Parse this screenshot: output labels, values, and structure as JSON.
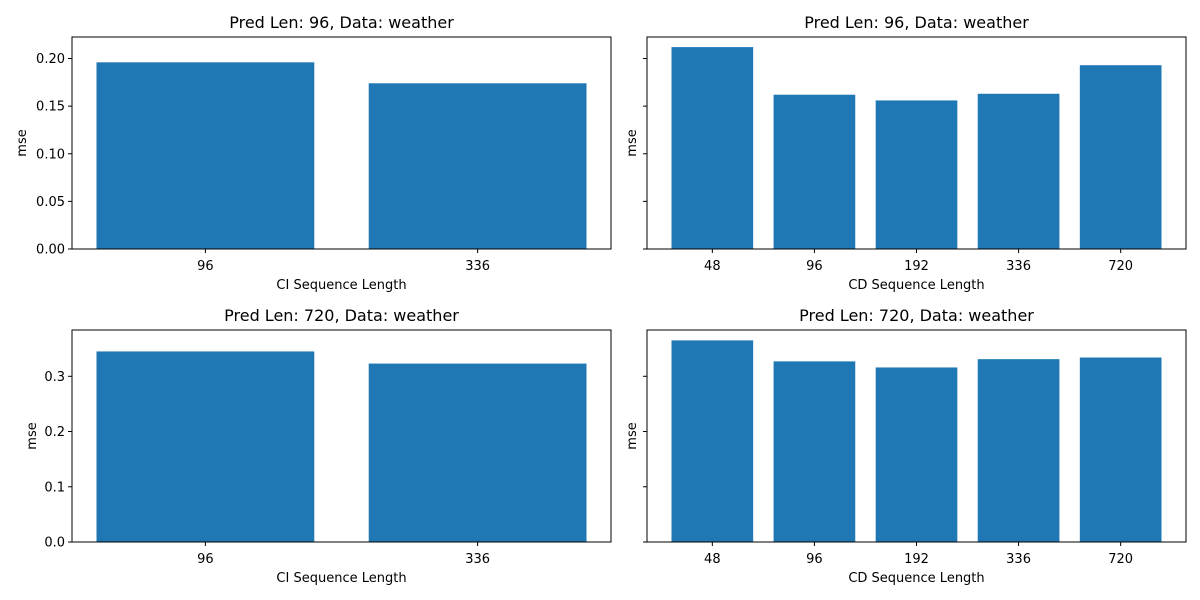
{
  "chart_data": [
    {
      "type": "bar",
      "title": "Pred Len: 96, Data: weather",
      "xlabel": "CI Sequence Length",
      "ylabel": "mse",
      "categories": [
        "96",
        "336"
      ],
      "values": [
        0.196,
        0.174
      ],
      "ylim": [
        0,
        0.2226
      ],
      "yticks": [
        "0.00",
        "0.05",
        "0.10",
        "0.15",
        "0.20"
      ],
      "ytick_values": [
        0,
        0.05,
        0.1,
        0.15,
        0.2
      ],
      "show_ytick_labels": true,
      "bar_color": "#1f77b4",
      "grid": false
    },
    {
      "type": "bar",
      "title": "Pred Len: 96, Data: weather",
      "xlabel": "CD Sequence Length",
      "ylabel": "mse",
      "categories": [
        "48",
        "96",
        "192",
        "336",
        "720"
      ],
      "values": [
        0.212,
        0.162,
        0.156,
        0.163,
        0.193
      ],
      "ylim": [
        0,
        0.2226
      ],
      "ytick_values": [
        0,
        0.05,
        0.1,
        0.15,
        0.2
      ],
      "show_ytick_labels": false,
      "bar_color": "#1f77b4",
      "grid": false
    },
    {
      "type": "bar",
      "title": "Pred Len: 720, Data: weather",
      "xlabel": "CI Sequence Length",
      "ylabel": "mse",
      "categories": [
        "96",
        "336"
      ],
      "values": [
        0.345,
        0.323
      ],
      "ylim": [
        0,
        0.3838
      ],
      "yticks": [
        "0.0",
        "0.1",
        "0.2",
        "0.3"
      ],
      "ytick_values": [
        0,
        0.1,
        0.2,
        0.3
      ],
      "show_ytick_labels": true,
      "bar_color": "#1f77b4",
      "grid": false
    },
    {
      "type": "bar",
      "title": "Pred Len: 720, Data: weather",
      "xlabel": "CD Sequence Length",
      "ylabel": "mse",
      "categories": [
        "48",
        "96",
        "192",
        "336",
        "720"
      ],
      "values": [
        0.365,
        0.327,
        0.316,
        0.331,
        0.334
      ],
      "ylim": [
        0,
        0.3838
      ],
      "ytick_values": [
        0,
        0.1,
        0.2,
        0.3
      ],
      "show_ytick_labels": false,
      "bar_color": "#1f77b4",
      "grid": false
    }
  ]
}
